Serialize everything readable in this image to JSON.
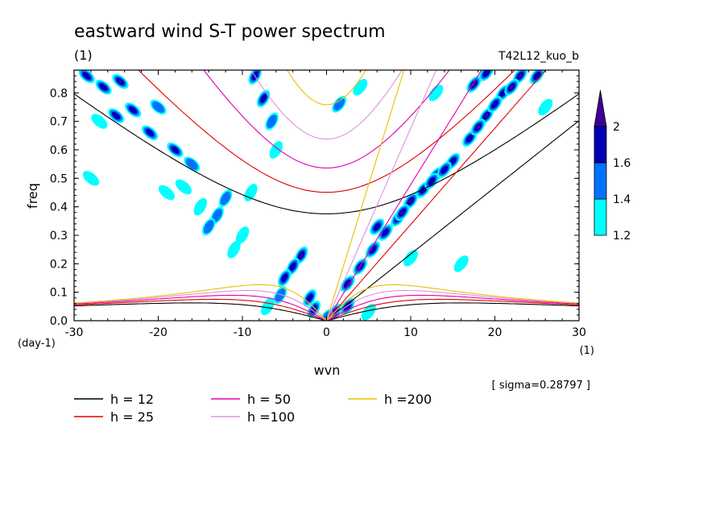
{
  "chart_data": {
    "type": "heatmap",
    "title": "eastward wind S-T power spectrum",
    "subtitle_left": "(1)",
    "subtitle_right": "T42L12_kuo_b",
    "xlabel": "wvn",
    "ylabel": "freq",
    "x_unit": "(1)",
    "y_unit": "(day-1)",
    "xlim": [
      -30,
      30
    ],
    "ylim": [
      0,
      0.88
    ],
    "x_ticks": [
      -30,
      -20,
      -10,
      0,
      10,
      20,
      30
    ],
    "x_tick_labels": [
      "-30",
      "-20",
      "-10",
      "0",
      "10",
      "20",
      "30"
    ],
    "y_ticks": [
      0,
      0.1,
      0.2,
      0.3,
      0.4,
      0.5,
      0.6,
      0.7,
      0.8
    ],
    "y_tick_labels": [
      "0.0",
      "0.1",
      "0.2",
      "0.3",
      "0.4",
      "0.5",
      "0.6",
      "0.7",
      "0.8"
    ],
    "annotation": "[ sigma=0.28797 ]",
    "colorbar": {
      "labels": [
        "1.2",
        "1.4",
        "1.6",
        "2"
      ],
      "levels": [
        1.2,
        1.4,
        1.6,
        2.0
      ],
      "colors": [
        "#00ffff",
        "#0072ff",
        "#0000b4",
        "#3c0096"
      ]
    },
    "dispersion_curves": [
      {
        "label": "h = 12",
        "h": 12,
        "color": "#000000"
      },
      {
        "label": "h = 25",
        "h": 25,
        "color": "#e00000"
      },
      {
        "label": "h = 50",
        "h": 50,
        "color": "#e000b0"
      },
      {
        "label": "h =100",
        "h": 100,
        "color": "#e090e0"
      },
      {
        "label": "h =200",
        "h": 200,
        "color": "#e8c000"
      }
    ],
    "power_blobs": [
      {
        "x": 1,
        "y": 0.03,
        "value": 2.0
      },
      {
        "x": -1.5,
        "y": 0.04,
        "value": 2.0
      },
      {
        "x": 2.5,
        "y": 0.13,
        "value": 1.6
      },
      {
        "x": 4,
        "y": 0.19,
        "value": 1.6
      },
      {
        "x": 5.5,
        "y": 0.25,
        "value": 1.6
      },
      {
        "x": 7,
        "y": 0.31,
        "value": 1.6
      },
      {
        "x": 8.5,
        "y": 0.36,
        "value": 2.0
      },
      {
        "x": 10,
        "y": 0.42,
        "value": 2.0
      },
      {
        "x": 11.5,
        "y": 0.46,
        "value": 1.6
      },
      {
        "x": 13,
        "y": 0.51,
        "value": 2.0
      },
      {
        "x": 15,
        "y": 0.56,
        "value": 1.6
      },
      {
        "x": 17,
        "y": 0.64,
        "value": 1.6
      },
      {
        "x": 19,
        "y": 0.72,
        "value": 2.0
      },
      {
        "x": 21,
        "y": 0.8,
        "value": 1.6
      },
      {
        "x": 23,
        "y": 0.86,
        "value": 2.0
      },
      {
        "x": 6,
        "y": 0.33,
        "value": 1.6
      },
      {
        "x": 9,
        "y": 0.38,
        "value": 2.0
      },
      {
        "x": 12.5,
        "y": 0.49,
        "value": 1.6
      },
      {
        "x": 14,
        "y": 0.53,
        "value": 1.6
      },
      {
        "x": 18,
        "y": 0.68,
        "value": 2.0
      },
      {
        "x": 20,
        "y": 0.76,
        "value": 1.6
      },
      {
        "x": 22,
        "y": 0.82,
        "value": 2.0
      },
      {
        "x": 25,
        "y": 0.86,
        "value": 1.6
      },
      {
        "x": 17.5,
        "y": 0.83,
        "value": 2.0
      },
      {
        "x": 19,
        "y": 0.87,
        "value": 1.6
      },
      {
        "x": -3,
        "y": 0.23,
        "value": 2.0
      },
      {
        "x": -4,
        "y": 0.19,
        "value": 1.6
      },
      {
        "x": -5,
        "y": 0.15,
        "value": 1.6
      },
      {
        "x": -5.5,
        "y": 0.09,
        "value": 1.4
      },
      {
        "x": -8.5,
        "y": 0.86,
        "value": 1.6
      },
      {
        "x": -7.5,
        "y": 0.78,
        "value": 1.6
      },
      {
        "x": -6.5,
        "y": 0.7,
        "value": 1.4
      },
      {
        "x": -24.5,
        "y": 0.84,
        "value": 2.0
      },
      {
        "x": -26.5,
        "y": 0.82,
        "value": 1.6
      },
      {
        "x": -28.5,
        "y": 0.86,
        "value": 1.6
      },
      {
        "x": -23,
        "y": 0.74,
        "value": 1.6
      },
      {
        "x": -25,
        "y": 0.72,
        "value": 1.6
      },
      {
        "x": -21,
        "y": 0.66,
        "value": 1.6
      },
      {
        "x": -18,
        "y": 0.6,
        "value": 1.6
      },
      {
        "x": -16,
        "y": 0.55,
        "value": 1.4
      },
      {
        "x": -20,
        "y": 0.75,
        "value": 1.4
      },
      {
        "x": -27,
        "y": 0.7,
        "value": 1.2
      },
      {
        "x": -13,
        "y": 0.37,
        "value": 1.4
      },
      {
        "x": -14,
        "y": 0.33,
        "value": 1.4
      },
      {
        "x": -12,
        "y": 0.43,
        "value": 1.4
      },
      {
        "x": -15,
        "y": 0.4,
        "value": 1.2
      },
      {
        "x": -10,
        "y": 0.3,
        "value": 1.2
      },
      {
        "x": -9,
        "y": 0.45,
        "value": 1.2
      },
      {
        "x": -17,
        "y": 0.47,
        "value": 1.2
      },
      {
        "x": -6,
        "y": 0.6,
        "value": 1.2
      },
      {
        "x": 1.5,
        "y": 0.76,
        "value": 1.4
      },
      {
        "x": 4,
        "y": 0.82,
        "value": 1.2
      },
      {
        "x": 13,
        "y": 0.8,
        "value": 1.2
      },
      {
        "x": 26,
        "y": 0.75,
        "value": 1.2
      },
      {
        "x": 10,
        "y": 0.22,
        "value": 1.2
      },
      {
        "x": 16,
        "y": 0.2,
        "value": 1.2
      },
      {
        "x": -2,
        "y": 0.08,
        "value": 1.6
      },
      {
        "x": 2.5,
        "y": 0.05,
        "value": 1.6
      },
      {
        "x": -7,
        "y": 0.05,
        "value": 1.2
      },
      {
        "x": 0,
        "y": 0.01,
        "value": 1.4
      },
      {
        "x": 5,
        "y": 0.03,
        "value": 1.2
      },
      {
        "x": -11,
        "y": 0.25,
        "value": 1.2
      },
      {
        "x": -28,
        "y": 0.5,
        "value": 1.2
      },
      {
        "x": -19,
        "y": 0.45,
        "value": 1.2
      }
    ]
  }
}
